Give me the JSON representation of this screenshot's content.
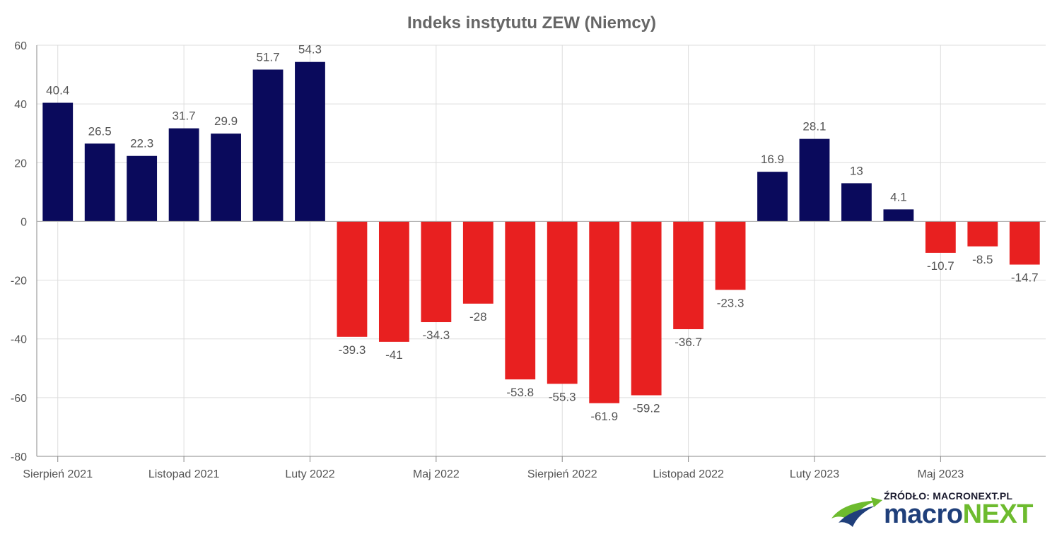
{
  "chart_data": {
    "type": "bar",
    "title": "Indeks instytutu ZEW (Niemcy)",
    "xlabel": "",
    "ylabel": "",
    "ylim": [
      -80,
      60
    ],
    "yticks": [
      60,
      40,
      20,
      0,
      -20,
      -40,
      -60,
      -80
    ],
    "x_tick_labels": [
      {
        "label": "Sierpień 2021",
        "index": 0
      },
      {
        "label": "Listopad 2021",
        "index": 3
      },
      {
        "label": "Luty 2022",
        "index": 6
      },
      {
        "label": "Maj 2022",
        "index": 9
      },
      {
        "label": "Sierpień 2022",
        "index": 12
      },
      {
        "label": "Listopad 2022",
        "index": 15
      },
      {
        "label": "Luty 2023",
        "index": 18
      },
      {
        "label": "Maj 2023",
        "index": 21
      }
    ],
    "values": [
      40.4,
      26.5,
      22.3,
      31.7,
      29.9,
      51.7,
      54.3,
      -39.3,
      -41,
      -34.3,
      -28,
      -53.8,
      -55.3,
      -61.9,
      -59.2,
      -36.7,
      -23.3,
      16.9,
      28.1,
      13,
      4.1,
      -10.7,
      -8.5,
      -14.7
    ],
    "data_labels": [
      "40.4",
      "26.5",
      "22.3",
      "31.7",
      "29.9",
      "51.7",
      "54.3",
      "-39.3",
      "-41",
      "-34.3",
      "-28",
      "-53.8",
      "-55.3",
      "-61.9",
      "-59.2",
      "-36.7",
      "-23.3",
      "16.9",
      "28.1",
      "13",
      "4.1",
      "-10.7",
      "-8.5",
      "-14.7"
    ],
    "colors": {
      "positive": "#0a0a5c",
      "negative": "#e82020",
      "grid": "#dddddd",
      "axis": "#888888",
      "text": "#555555",
      "title": "#666666"
    },
    "grid": true,
    "legend": "none"
  },
  "branding": {
    "source": "ŹRÓDŁO: MACRONEXT.PL",
    "brand_part1": "macro",
    "brand_part2": "NEXT",
    "colors": {
      "brand_blue": "#1f3f7a",
      "brand_green": "#6dbb2e"
    }
  }
}
